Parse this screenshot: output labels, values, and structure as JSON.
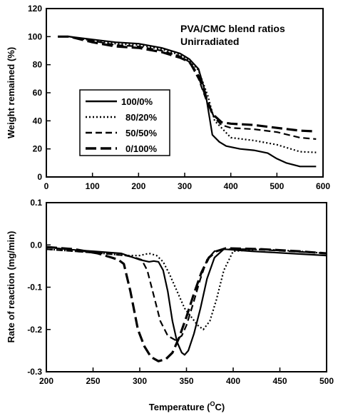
{
  "chart_data": [
    {
      "type": "line",
      "title": "",
      "annotation": [
        "PVA/CMC blend ratios",
        "Unirradiated"
      ],
      "xlabel": "",
      "ylabel": "Weight remained (%)",
      "xlim": [
        0,
        600
      ],
      "ylim": [
        0,
        120
      ],
      "xticks": [
        0,
        100,
        200,
        300,
        400,
        500,
        600
      ],
      "yticks": [
        0,
        20,
        40,
        60,
        80,
        100,
        120
      ],
      "grid": false,
      "legend_position": "left-center",
      "series": [
        {
          "name": "100/0%",
          "dash": "solid",
          "color": "#000000",
          "x": [
            25,
            50,
            100,
            150,
            200,
            250,
            290,
            310,
            330,
            345,
            360,
            375,
            390,
            420,
            450,
            480,
            500,
            520,
            550,
            585
          ],
          "y": [
            100,
            100,
            98,
            96,
            95,
            92,
            88,
            84,
            77,
            60,
            30,
            25,
            22,
            20,
            19,
            17,
            13,
            10,
            7.5,
            7.5
          ]
        },
        {
          "name": "80/20%",
          "dash": "dotted",
          "color": "#000000",
          "x": [
            25,
            50,
            100,
            150,
            200,
            250,
            290,
            310,
            330,
            350,
            365,
            380,
            400,
            450,
            500,
            550,
            585
          ],
          "y": [
            100,
            100,
            97,
            95,
            94,
            91,
            87,
            83,
            76,
            58,
            40,
            35,
            28,
            26,
            23,
            18,
            17.5
          ]
        },
        {
          "name": "50/50%",
          "dash": "dashed",
          "color": "#000000",
          "x": [
            25,
            50,
            100,
            150,
            200,
            250,
            290,
            310,
            330,
            350,
            365,
            380,
            400,
            450,
            500,
            550,
            585
          ],
          "y": [
            100,
            100,
            97,
            94,
            93,
            90,
            86,
            82,
            70,
            52,
            42,
            37,
            35,
            34,
            32,
            28,
            27
          ]
        },
        {
          "name": "0/100%",
          "dash": "longdash",
          "color": "#000000",
          "x": [
            25,
            50,
            100,
            150,
            200,
            250,
            290,
            310,
            330,
            345,
            360,
            380,
            400,
            450,
            500,
            550,
            585
          ],
          "y": [
            100,
            100,
            96,
            93,
            92,
            89,
            85,
            82,
            72,
            58,
            45,
            39,
            38,
            37,
            35,
            33,
            32.5
          ]
        }
      ]
    },
    {
      "type": "line",
      "title": "",
      "xlabel": "Temperature (°C)",
      "xlabel_parts": [
        "Temperature (",
        "O",
        "C)"
      ],
      "ylabel": "Rate of reaction (mg/min)",
      "xlim": [
        200,
        500
      ],
      "ylim": [
        -0.3,
        0.1
      ],
      "xticks": [
        200,
        250,
        300,
        350,
        400,
        450,
        500
      ],
      "yticks": [
        -0.3,
        -0.2,
        -0.1,
        0.0,
        0.1
      ],
      "ytick_labels": [
        "-0.3",
        "-0.2",
        "-0.1",
        "0.0",
        "0.1"
      ],
      "grid": false,
      "series": [
        {
          "name": "100/0%",
          "dash": "solid",
          "color": "#000000",
          "x": [
            200,
            220,
            250,
            280,
            300,
            310,
            315,
            320,
            325,
            330,
            335,
            340,
            345,
            348,
            352,
            358,
            365,
            372,
            380,
            390,
            420,
            460,
            500
          ],
          "y": [
            -0.005,
            -0.01,
            -0.015,
            -0.02,
            -0.035,
            -0.04,
            -0.038,
            -0.04,
            -0.06,
            -0.11,
            -0.18,
            -0.23,
            -0.255,
            -0.26,
            -0.25,
            -0.21,
            -0.15,
            -0.08,
            -0.03,
            -0.01,
            -0.015,
            -0.02,
            -0.025
          ]
        },
        {
          "name": "80/20%",
          "dash": "dotted",
          "color": "#000000",
          "x": [
            200,
            230,
            260,
            285,
            300,
            310,
            318,
            325,
            332,
            340,
            348,
            355,
            362,
            368,
            375,
            382,
            390,
            400,
            430,
            470,
            500
          ],
          "y": [
            -0.01,
            -0.015,
            -0.02,
            -0.025,
            -0.025,
            -0.02,
            -0.025,
            -0.04,
            -0.07,
            -0.11,
            -0.15,
            -0.17,
            -0.19,
            -0.2,
            -0.18,
            -0.13,
            -0.06,
            -0.015,
            -0.01,
            -0.015,
            -0.02
          ]
        },
        {
          "name": "50/50%",
          "dash": "dashed",
          "color": "#000000",
          "x": [
            200,
            230,
            260,
            285,
            295,
            302,
            308,
            315,
            322,
            330,
            338,
            345,
            350,
            357,
            365,
            372,
            380,
            390,
            420,
            460,
            500
          ],
          "y": [
            -0.01,
            -0.015,
            -0.02,
            -0.025,
            -0.03,
            -0.035,
            -0.06,
            -0.12,
            -0.18,
            -0.215,
            -0.225,
            -0.215,
            -0.19,
            -0.14,
            -0.08,
            -0.035,
            -0.015,
            -0.01,
            -0.01,
            -0.015,
            -0.02
          ]
        },
        {
          "name": "0/100%",
          "dash": "longdash",
          "color": "#000000",
          "x": [
            200,
            230,
            255,
            270,
            277,
            283,
            290,
            298,
            305,
            312,
            320,
            328,
            335,
            342,
            350,
            358,
            366,
            374,
            382,
            392,
            430,
            470,
            500
          ],
          "y": [
            -0.005,
            -0.01,
            -0.02,
            -0.03,
            -0.035,
            -0.045,
            -0.11,
            -0.2,
            -0.24,
            -0.265,
            -0.275,
            -0.27,
            -0.255,
            -0.22,
            -0.17,
            -0.115,
            -0.065,
            -0.03,
            -0.015,
            -0.008,
            -0.01,
            -0.015,
            -0.02
          ]
        }
      ]
    }
  ]
}
